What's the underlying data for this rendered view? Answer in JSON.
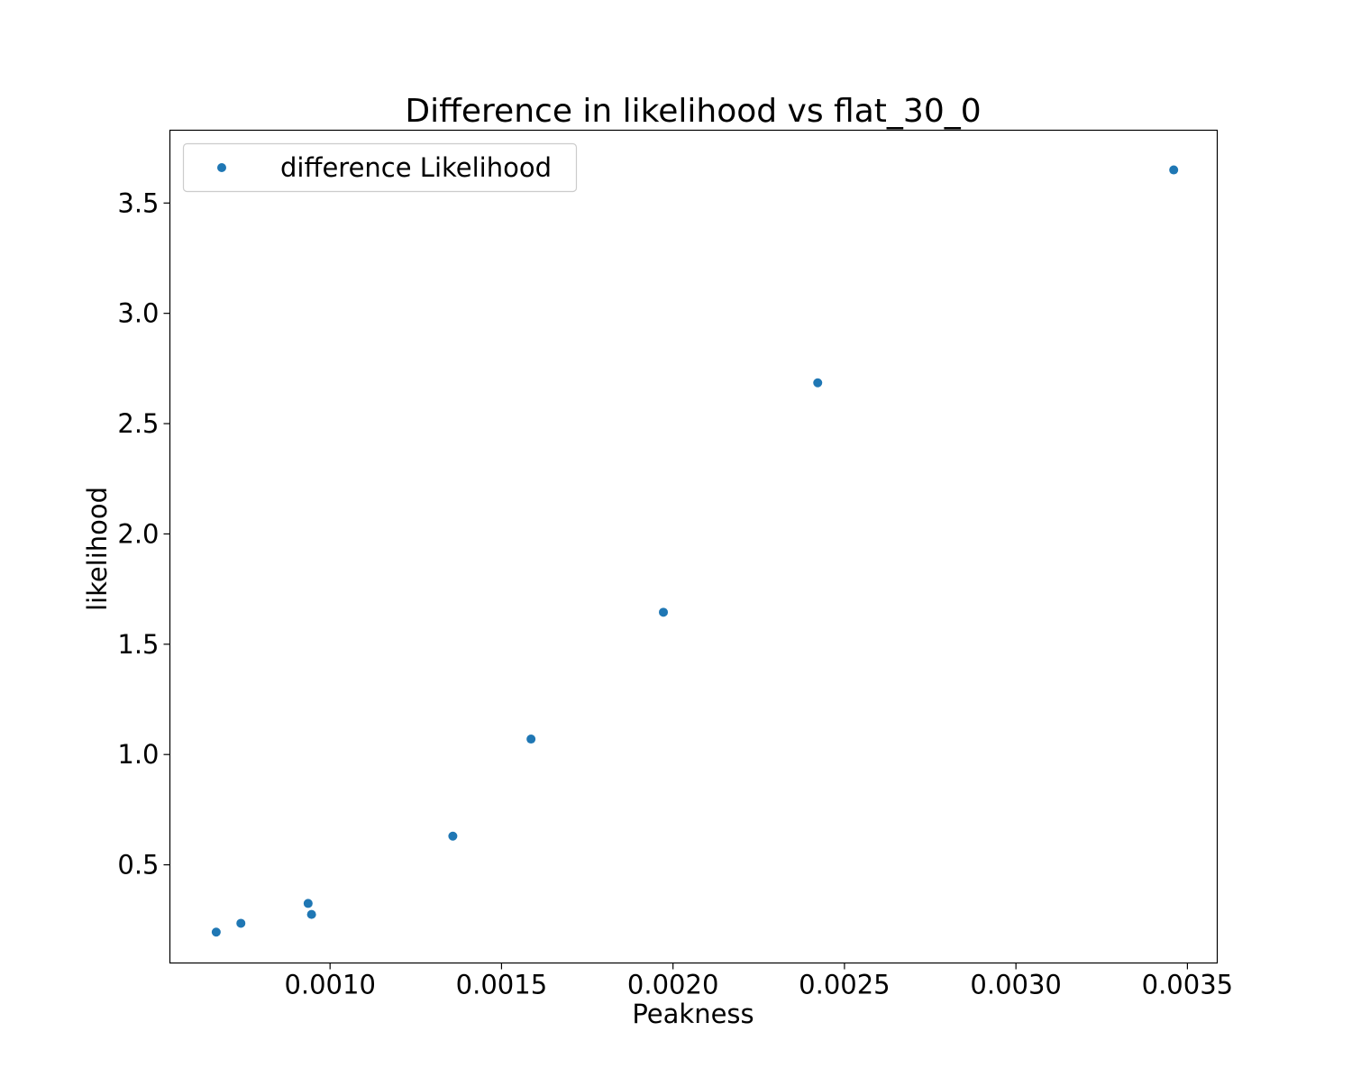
{
  "chart_data": {
    "type": "scatter",
    "title": "Difference in likelihood vs flat_30_0",
    "xlabel": "Peakness",
    "ylabel": "likelihood",
    "xlim": [
      0.000533,
      0.003587
    ],
    "ylim": [
      0.055,
      3.83
    ],
    "xticks": [
      {
        "value": 0.001,
        "label": "0.0010"
      },
      {
        "value": 0.0015,
        "label": "0.0015"
      },
      {
        "value": 0.002,
        "label": "0.0020"
      },
      {
        "value": 0.0025,
        "label": "0.0025"
      },
      {
        "value": 0.003,
        "label": "0.0030"
      },
      {
        "value": 0.0035,
        "label": "0.0035"
      }
    ],
    "yticks": [
      {
        "value": 0.5,
        "label": "0.5"
      },
      {
        "value": 1.0,
        "label": "1.0"
      },
      {
        "value": 1.5,
        "label": "1.5"
      },
      {
        "value": 2.0,
        "label": "2.0"
      },
      {
        "value": 2.5,
        "label": "2.5"
      },
      {
        "value": 3.0,
        "label": "3.0"
      },
      {
        "value": 3.5,
        "label": "3.5"
      }
    ],
    "grid": false,
    "legend": {
      "position": "top-left"
    },
    "series": [
      {
        "name": "difference Likelihood",
        "color": "#1f77b4",
        "points": [
          {
            "x": 0.000668,
            "y": 0.195
          },
          {
            "x": 0.00074,
            "y": 0.235
          },
          {
            "x": 0.000936,
            "y": 0.325
          },
          {
            "x": 0.000946,
            "y": 0.275
          },
          {
            "x": 0.001358,
            "y": 0.63
          },
          {
            "x": 0.001586,
            "y": 1.07
          },
          {
            "x": 0.001972,
            "y": 1.645
          },
          {
            "x": 0.002422,
            "y": 2.685
          },
          {
            "x": 0.00346,
            "y": 3.65
          }
        ]
      }
    ]
  }
}
